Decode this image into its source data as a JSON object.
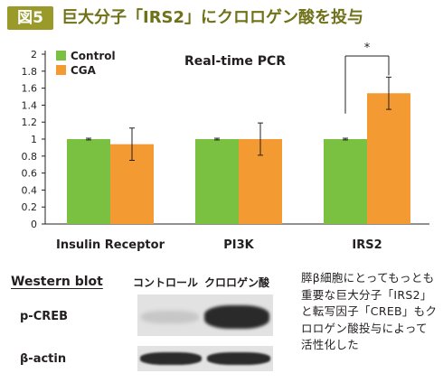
{
  "header": {
    "badge": "図5",
    "title": "巨大分子「IRS2」にクロロゲン酸を投与"
  },
  "chart_data": {
    "type": "bar",
    "title": "Real-time PCR",
    "categories": [
      "Insulin Receptor",
      "PI3K",
      "IRS2"
    ],
    "series": [
      {
        "name": "Control",
        "color": "#7ac142",
        "values": [
          1.0,
          1.0,
          1.0
        ],
        "errors": [
          0.01,
          0.01,
          0.01
        ]
      },
      {
        "name": "CGA",
        "color": "#f39a32",
        "values": [
          0.94,
          1.0,
          1.54
        ],
        "errors": [
          0.19,
          0.19,
          0.19
        ]
      }
    ],
    "ylim": [
      0,
      2
    ],
    "yticks": [
      "0",
      "0.2",
      "0.4",
      "0.6",
      "0.8",
      "1",
      "1.2",
      "1.4",
      "1.6",
      "1.8",
      "2"
    ],
    "legend_position": "top-left",
    "significance": {
      "category": "IRS2",
      "mark": "*"
    }
  },
  "western": {
    "title": "Western blot",
    "lanes": [
      "コントロール",
      "クロロゲン酸"
    ],
    "rows": [
      "p-CREB",
      "β-actin"
    ]
  },
  "caption": "膵β細胞にとってもっとも重要な巨大分子「IRS2」と転写因子「CREB」もクロロゲン酸投与によって活性化した"
}
